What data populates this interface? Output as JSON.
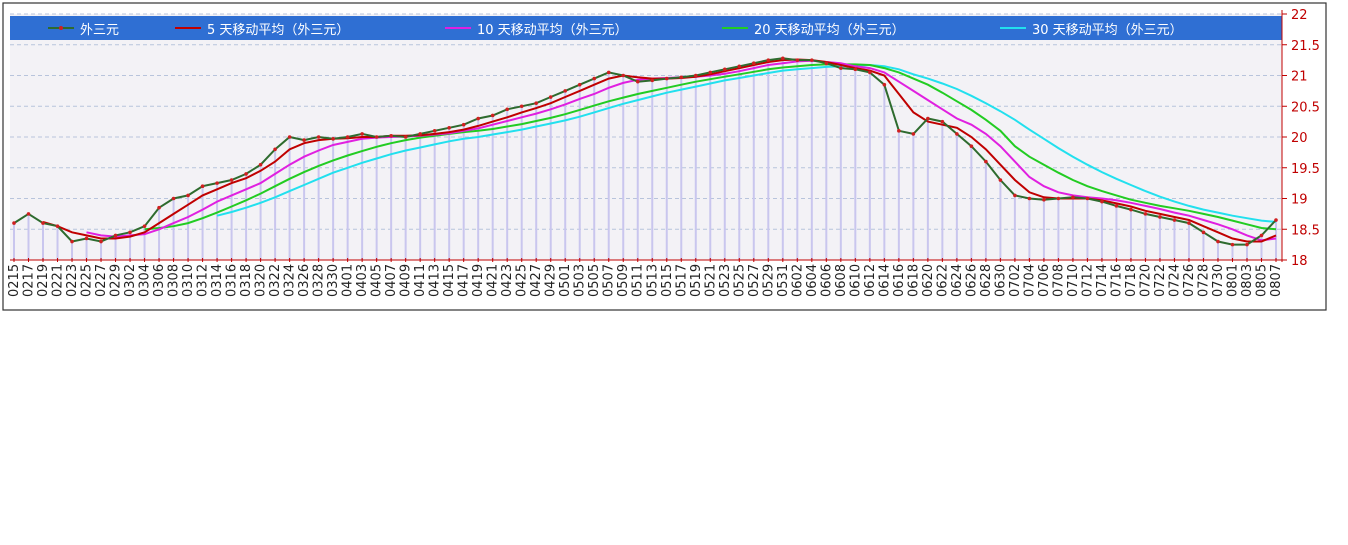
{
  "chart_data": {
    "type": "line",
    "categories": [
      "0215",
      "0217",
      "0219",
      "0221",
      "0223",
      "0225",
      "0227",
      "0229",
      "0302",
      "0304",
      "0306",
      "0308",
      "0310",
      "0312",
      "0314",
      "0316",
      "0318",
      "0320",
      "0322",
      "0324",
      "0326",
      "0328",
      "0330",
      "0401",
      "0403",
      "0405",
      "0407",
      "0409",
      "0411",
      "0413",
      "0415",
      "0417",
      "0419",
      "0421",
      "0423",
      "0425",
      "0427",
      "0429",
      "0501",
      "0503",
      "0505",
      "0507",
      "0509",
      "0511",
      "0513",
      "0515",
      "0517",
      "0519",
      "0521",
      "0523",
      "0525",
      "0527",
      "0529",
      "0531",
      "0602",
      "0604",
      "0606",
      "0608",
      "0610",
      "0612",
      "0614",
      "0616",
      "0618",
      "0620",
      "0622",
      "0624",
      "0626",
      "0628",
      "0630",
      "0702",
      "0704",
      "0706",
      "0708",
      "0710",
      "0712",
      "0714",
      "0716",
      "0718",
      "0720",
      "0722",
      "0724",
      "0726",
      "0728",
      "0730",
      "0801",
      "0803",
      "0805",
      "0807"
    ],
    "series": [
      {
        "name": "外三元",
        "color": "#2e6b2e",
        "values": [
          18.6,
          18.75,
          18.6,
          18.55,
          18.3,
          18.35,
          18.3,
          18.4,
          18.45,
          18.55,
          18.85,
          19.0,
          19.05,
          19.2,
          19.25,
          19.3,
          19.4,
          19.55,
          19.8,
          20.0,
          19.95,
          20.0,
          19.97,
          20.0,
          20.05,
          20.0,
          20.02,
          20.0,
          20.05,
          20.1,
          20.15,
          20.2,
          20.3,
          20.35,
          20.45,
          20.5,
          20.55,
          20.65,
          20.75,
          20.85,
          20.95,
          21.05,
          21.0,
          20.9,
          20.92,
          20.95,
          20.97,
          21.0,
          21.05,
          21.1,
          21.15,
          21.2,
          21.25,
          21.28,
          21.25,
          21.25,
          21.2,
          21.12,
          21.1,
          21.05,
          20.85,
          20.1,
          20.05,
          20.3,
          20.25,
          20.05,
          19.85,
          19.6,
          19.3,
          19.05,
          19.0,
          18.98,
          19.0,
          19.02,
          19.0,
          18.95,
          18.88,
          18.82,
          18.75,
          18.7,
          18.65,
          18.6,
          18.45,
          18.3,
          18.25,
          18.25,
          18.4,
          18.65
        ]
      },
      {
        "name": "5 天移动平均（外三元）",
        "color": "#c00000",
        "values": [
          null,
          null,
          18.62,
          18.55,
          18.45,
          18.4,
          18.35,
          18.35,
          18.38,
          18.45,
          18.6,
          18.75,
          18.9,
          19.05,
          19.15,
          19.25,
          19.33,
          19.45,
          19.6,
          19.8,
          19.9,
          19.95,
          19.97,
          19.98,
          20.0,
          20.0,
          20.02,
          20.02,
          20.03,
          20.05,
          20.08,
          20.12,
          20.18,
          20.25,
          20.32,
          20.4,
          20.47,
          20.55,
          20.65,
          20.75,
          20.85,
          20.95,
          21.0,
          20.97,
          20.95,
          20.95,
          20.96,
          20.98,
          21.02,
          21.07,
          21.12,
          21.17,
          21.22,
          21.25,
          21.26,
          21.25,
          21.22,
          21.17,
          21.12,
          21.08,
          21.0,
          20.7,
          20.4,
          20.25,
          20.2,
          20.15,
          20.0,
          19.8,
          19.55,
          19.3,
          19.1,
          19.02,
          19.0,
          19.0,
          19.0,
          18.97,
          18.92,
          18.87,
          18.8,
          18.75,
          18.7,
          18.65,
          18.55,
          18.45,
          18.35,
          18.3,
          18.3,
          18.4
        ]
      },
      {
        "name": "10 天移动平均（外三元）",
        "color": "#e020e0",
        "values": [
          null,
          null,
          null,
          null,
          null,
          18.45,
          18.4,
          18.38,
          18.4,
          18.42,
          18.5,
          18.6,
          18.7,
          18.82,
          18.95,
          19.05,
          19.15,
          19.25,
          19.4,
          19.55,
          19.68,
          19.78,
          19.87,
          19.92,
          19.97,
          19.99,
          20.0,
          20.01,
          20.02,
          20.04,
          20.06,
          20.1,
          20.14,
          20.2,
          20.26,
          20.32,
          20.38,
          20.45,
          20.53,
          20.62,
          20.7,
          20.8,
          20.88,
          20.93,
          20.95,
          20.96,
          20.97,
          20.98,
          21.0,
          21.03,
          21.07,
          21.12,
          21.17,
          21.2,
          21.23,
          21.24,
          21.22,
          21.2,
          21.15,
          21.12,
          21.05,
          20.9,
          20.75,
          20.6,
          20.45,
          20.3,
          20.2,
          20.05,
          19.85,
          19.6,
          19.35,
          19.2,
          19.1,
          19.05,
          19.02,
          19.0,
          18.97,
          18.93,
          18.88,
          18.83,
          18.77,
          18.72,
          18.65,
          18.58,
          18.5,
          18.4,
          18.32,
          18.35
        ]
      },
      {
        "name": "20 天移动平均（外三元）",
        "color": "#22cc22",
        "values": [
          null,
          null,
          null,
          null,
          null,
          null,
          null,
          null,
          null,
          18.5,
          18.52,
          18.55,
          18.6,
          18.68,
          18.77,
          18.87,
          18.97,
          19.08,
          19.2,
          19.32,
          19.43,
          19.53,
          19.62,
          19.7,
          19.77,
          19.84,
          19.9,
          19.95,
          19.99,
          20.02,
          20.05,
          20.08,
          20.1,
          20.13,
          20.17,
          20.21,
          20.26,
          20.31,
          20.37,
          20.44,
          20.51,
          20.58,
          20.64,
          20.7,
          20.75,
          20.8,
          20.85,
          20.9,
          20.94,
          20.98,
          21.02,
          21.06,
          21.1,
          21.13,
          21.15,
          21.17,
          21.18,
          21.18,
          21.18,
          21.17,
          21.12,
          21.05,
          20.95,
          20.85,
          20.72,
          20.58,
          20.44,
          20.28,
          20.1,
          19.85,
          19.68,
          19.55,
          19.42,
          19.3,
          19.2,
          19.12,
          19.05,
          18.98,
          18.93,
          18.88,
          18.84,
          18.8,
          18.75,
          18.7,
          18.64,
          18.58,
          18.52,
          18.5
        ]
      },
      {
        "name": "30 天移动平均（外三元）",
        "color": "#22e0ee",
        "values": [
          null,
          null,
          null,
          null,
          null,
          null,
          null,
          null,
          null,
          null,
          null,
          null,
          null,
          null,
          18.72,
          18.78,
          18.85,
          18.93,
          19.02,
          19.12,
          19.22,
          19.32,
          19.42,
          19.5,
          19.58,
          19.65,
          19.72,
          19.78,
          19.83,
          19.88,
          19.93,
          19.97,
          20.0,
          20.04,
          20.08,
          20.12,
          20.17,
          20.22,
          20.27,
          20.33,
          20.4,
          20.47,
          20.54,
          20.6,
          20.66,
          20.72,
          20.77,
          20.82,
          20.87,
          20.92,
          20.96,
          21.0,
          21.04,
          21.08,
          21.1,
          21.12,
          21.14,
          21.15,
          21.16,
          21.17,
          21.15,
          21.1,
          21.02,
          20.95,
          20.87,
          20.78,
          20.67,
          20.55,
          20.42,
          20.28,
          20.12,
          19.97,
          19.82,
          19.68,
          19.55,
          19.43,
          19.32,
          19.22,
          19.12,
          19.03,
          18.95,
          18.88,
          18.82,
          18.77,
          18.72,
          18.68,
          18.64,
          18.62
        ]
      }
    ],
    "ylim": [
      18,
      22
    ],
    "yticks": [
      18,
      18.5,
      19,
      19.5,
      20,
      20.5,
      21,
      21.5,
      22
    ],
    "grid": true,
    "legend": "top"
  }
}
